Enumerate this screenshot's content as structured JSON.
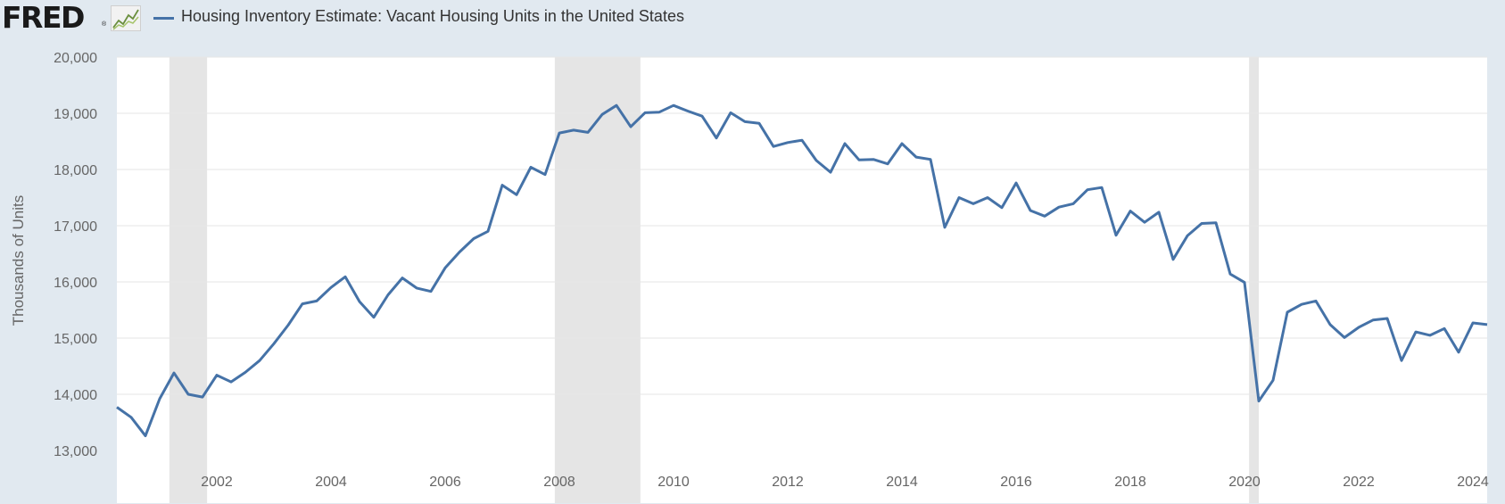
{
  "logo": {
    "text": "FRED",
    "reg": "®"
  },
  "colors": {
    "background": "#e1e9f0",
    "plot_bg": "#ffffff",
    "series": "#4572a7",
    "recession": "#e5e5e5",
    "grid": "#e6e6e6"
  },
  "chart_data": {
    "type": "line",
    "title": "Housing Inventory Estimate: Vacant Housing Units in the United States",
    "ylabel": "Thousands of Units",
    "xlabel": "",
    "xlim": [
      2000.25,
      2024.25
    ],
    "ylim": [
      13000,
      20000
    ],
    "yticks": [
      13000,
      14000,
      15000,
      16000,
      17000,
      18000,
      19000,
      20000
    ],
    "ytick_labels": [
      "13,000",
      "14,000",
      "15,000",
      "16,000",
      "17,000",
      "18,000",
      "19,000",
      "20,000"
    ],
    "xticks": [
      2002,
      2004,
      2006,
      2008,
      2010,
      2012,
      2014,
      2016,
      2018,
      2020,
      2022,
      2024
    ],
    "xtick_labels": [
      "2002",
      "2004",
      "2006",
      "2008",
      "2010",
      "2012",
      "2014",
      "2016",
      "2018",
      "2020",
      "2022",
      "2024"
    ],
    "grid": true,
    "legend": "top-left",
    "recessions": [
      [
        2001.17,
        2001.83
      ],
      [
        2007.92,
        2009.42
      ],
      [
        2020.08,
        2020.25
      ]
    ],
    "series": [
      {
        "name": "Housing Inventory Estimate: Vacant Housing Units in the United States",
        "x": [
          2000.25,
          2000.5,
          2000.75,
          2001.0,
          2001.25,
          2001.5,
          2001.75,
          2002.0,
          2002.25,
          2002.5,
          2002.75,
          2003.0,
          2003.25,
          2003.5,
          2003.75,
          2004.0,
          2004.25,
          2004.5,
          2004.75,
          2005.0,
          2005.25,
          2005.5,
          2005.75,
          2006.0,
          2006.25,
          2006.5,
          2006.75,
          2007.0,
          2007.25,
          2007.5,
          2007.75,
          2008.0,
          2008.25,
          2008.5,
          2008.75,
          2009.0,
          2009.25,
          2009.5,
          2009.75,
          2010.0,
          2010.25,
          2010.5,
          2010.75,
          2011.0,
          2011.25,
          2011.5,
          2011.75,
          2012.0,
          2012.25,
          2012.5,
          2012.75,
          2013.0,
          2013.25,
          2013.5,
          2013.75,
          2014.0,
          2014.25,
          2014.5,
          2014.75,
          2015.0,
          2015.25,
          2015.5,
          2015.75,
          2016.0,
          2016.25,
          2016.5,
          2016.75,
          2017.0,
          2017.25,
          2017.5,
          2017.75,
          2018.0,
          2018.25,
          2018.5,
          2018.75,
          2019.0,
          2019.25,
          2019.5,
          2019.75,
          2020.0,
          2020.25,
          2020.5,
          2020.75,
          2021.0,
          2021.25,
          2021.5,
          2021.75,
          2022.0,
          2022.25,
          2022.5,
          2022.75,
          2023.0,
          2023.25,
          2023.5,
          2023.75,
          2024.0,
          2024.25
        ],
        "y": [
          13770,
          13590,
          13260,
          13920,
          14380,
          14000,
          13950,
          14340,
          14220,
          14390,
          14600,
          14900,
          15230,
          15610,
          15660,
          15900,
          16090,
          15650,
          15370,
          15770,
          16070,
          15890,
          15830,
          16250,
          16530,
          16770,
          16900,
          17720,
          17550,
          18040,
          17910,
          18650,
          18700,
          18660,
          18980,
          19140,
          18760,
          19010,
          19020,
          19140,
          19040,
          18950,
          18560,
          19010,
          18850,
          18820,
          18410,
          18480,
          18520,
          18160,
          17950,
          18460,
          18170,
          18180,
          18100,
          18460,
          18220,
          18180,
          16970,
          17500,
          17390,
          17500,
          17320,
          17760,
          17270,
          17170,
          17330,
          17390,
          17640,
          17680,
          16830,
          17260,
          17060,
          17240,
          16400,
          16820,
          17040,
          17050,
          16140,
          15990,
          13880,
          14250,
          15460,
          15600,
          15660,
          15240,
          15010,
          15190,
          15320,
          15350,
          14600,
          15110,
          15050,
          15170,
          14750,
          15270,
          15240
        ]
      }
    ]
  }
}
